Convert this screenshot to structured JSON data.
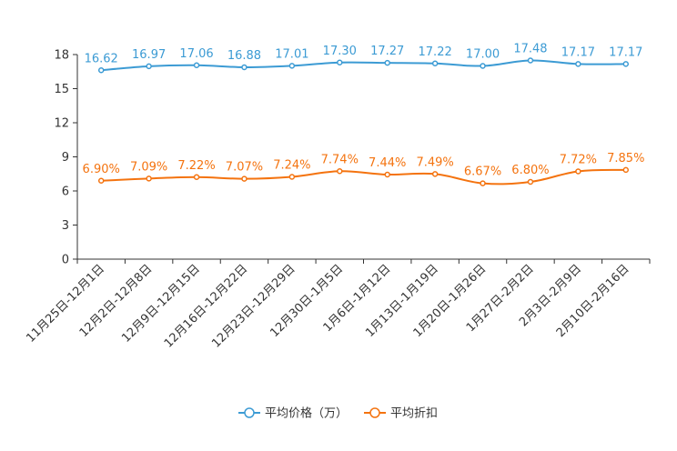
{
  "chart_data": {
    "type": "line",
    "categories": [
      "11月25日-12月1日",
      "12月2日-12月8日",
      "12月9日-12月15日",
      "12月16日-12月22日",
      "12月23日-12月29日",
      "12月30日-1月5日",
      "1月6日-1月12日",
      "1月13日-1月19日",
      "1月20日-1月26日",
      "1月27日-2月2日",
      "2月3日-2月9日",
      "2月10日-2月16日"
    ],
    "ylim": [
      0,
      18
    ],
    "yticks": [
      0,
      3,
      6,
      9,
      12,
      15,
      18
    ],
    "series": [
      {
        "name": "平均价格（万）",
        "color": "#3c9bd4",
        "values": [
          16.62,
          16.97,
          17.06,
          16.88,
          17.01,
          17.3,
          17.27,
          17.22,
          17.0,
          17.48,
          17.17,
          17.17
        ],
        "labels": [
          "16.62",
          "16.97",
          "17.06",
          "16.88",
          "17.01",
          "17.30",
          "17.27",
          "17.22",
          "17.00",
          "17.48",
          "17.17",
          "17.17"
        ]
      },
      {
        "name": "平均折扣",
        "color": "#f4730f",
        "values": [
          6.9,
          7.09,
          7.22,
          7.07,
          7.24,
          7.74,
          7.44,
          7.49,
          6.67,
          6.8,
          7.72,
          7.85
        ],
        "labels": [
          "6.90%",
          "7.09%",
          "7.22%",
          "7.07%",
          "7.24%",
          "7.74%",
          "7.44%",
          "7.49%",
          "6.67%",
          "6.80%",
          "7.72%",
          "7.85%"
        ]
      }
    ],
    "title": "",
    "xlabel": "",
    "ylabel": "",
    "legend": "bottom-center"
  }
}
